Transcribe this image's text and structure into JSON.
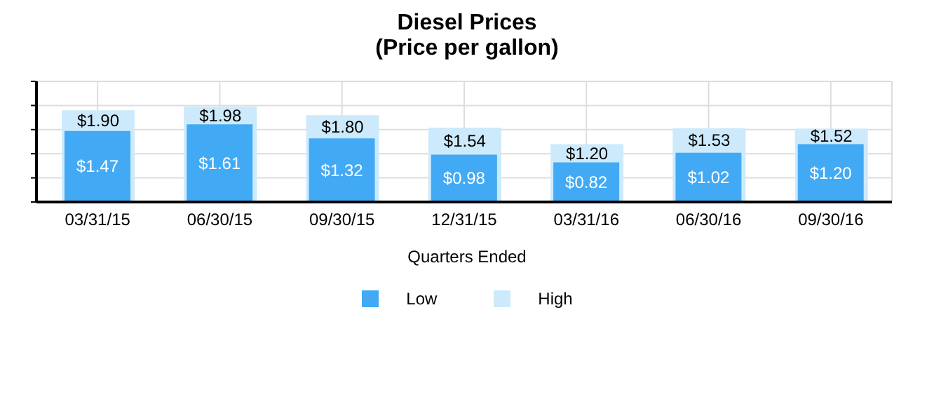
{
  "chart_data": {
    "type": "bar",
    "title": "Diesel Prices",
    "subtitle": "(Price per gallon)",
    "xlabel": "Quarters Ended",
    "categories": [
      "03/31/15",
      "06/30/15",
      "09/30/15",
      "12/31/15",
      "03/31/16",
      "06/30/16",
      "09/30/16"
    ],
    "series": [
      {
        "name": "Low",
        "color": "#42aaf5",
        "values": [
          1.47,
          1.61,
          1.32,
          0.98,
          0.82,
          1.02,
          1.2
        ],
        "value_labels": [
          "$1.47",
          "$1.61",
          "$1.32",
          "$0.98",
          "$0.82",
          "$1.02",
          "$1.20"
        ]
      },
      {
        "name": "High",
        "color": "#cdeafc",
        "values": [
          1.9,
          1.98,
          1.8,
          1.54,
          1.2,
          1.53,
          1.52
        ],
        "value_labels": [
          "$1.90",
          "$1.98",
          "$1.80",
          "$1.54",
          "$1.20",
          "$1.53",
          "$1.52"
        ]
      }
    ],
    "ylim": [
      0,
      2.5
    ],
    "yticks": [
      {
        "value": 0,
        "label": null
      },
      {
        "value": 0.5,
        "label": null
      },
      {
        "value": 1,
        "label": null
      },
      {
        "value": 1.5,
        "label": null
      },
      {
        "value": 2,
        "label": null
      },
      {
        "value": 2.5,
        "label": null
      }
    ],
    "tick_labels": "x",
    "grid": true,
    "legend": "bottom"
  }
}
